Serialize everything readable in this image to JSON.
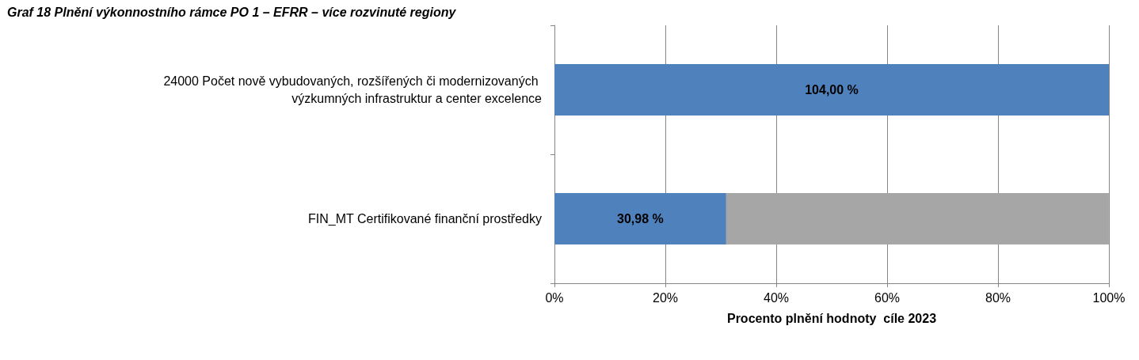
{
  "chart_data": {
    "type": "bar",
    "orientation": "horizontal",
    "stacked": true,
    "title": "Graf 18 Plnění výkonnostního rámce PO 1 – EFRR – více rozvinuté regiony",
    "xlabel": "Procento plnění hodnoty  cíle 2023",
    "categories": [
      "24000 Počet nově vybudovaných, rozšířených či modernizovaných výzkumných infrastruktur a center excelence",
      "FIN_MT Certifikované finanční prostředky"
    ],
    "series": [
      {
        "color": "#4f81bd",
        "values": [
          100,
          30.98
        ],
        "value_labels": [
          null,
          "30,98 %"
        ]
      },
      {
        "color": "#a6a6a6",
        "values": [
          null,
          69.0
        ]
      }
    ],
    "xlim": [
      0,
      100
    ],
    "xticks": [
      {
        "value": 0,
        "label": "0%"
      },
      {
        "value": 20,
        "label": "20%"
      },
      {
        "value": 40,
        "label": "40%"
      },
      {
        "value": 60,
        "label": "60%"
      },
      {
        "value": 80,
        "label": "80%"
      },
      {
        "value": 100,
        "label": "100%"
      }
    ],
    "annotations": [
      "104,00 %"
    ],
    "grid": "x"
  }
}
